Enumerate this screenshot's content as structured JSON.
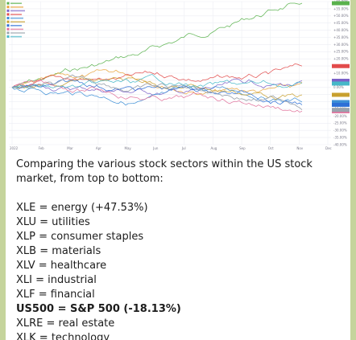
{
  "chart": {
    "x_tick_labels": [
      "2022",
      "Feb",
      "Mar",
      "Apr",
      "May",
      "Jun",
      "Jul",
      "Aug",
      "Sep",
      "Oct",
      "Nov",
      "Dec"
    ],
    "y_tick_labels": [
      "+60.00%",
      "+55.00%",
      "+50.00%",
      "+45.00%",
      "+40.00%",
      "+35.00%",
      "+30.00%",
      "+25.00%",
      "+20.00%",
      "+15.00%",
      "+10.00%",
      "+5.00%",
      "0.00%",
      "-5.00%",
      "-10.00%",
      "-15.00%",
      "-20.00%",
      "-25.00%",
      "-30.00%",
      "-35.00%",
      "-40.00%"
    ],
    "series_colors": [
      "#5ab24d",
      "#e8a33a",
      "#7b61c8",
      "#e24b4b",
      "#3d8fd6",
      "#c8a02f",
      "#2d6fd6",
      "#e0709a",
      "#9aa3ad",
      "#46b8c8"
    ],
    "legend_colors": [
      "#5ab24d",
      "#e8a33a",
      "#7b61c8",
      "#e24b4b",
      "#3d8fd6",
      "#c8a02f",
      "#2d6fd6",
      "#e0709a",
      "#9aa3ad",
      "#46b8c8"
    ]
  },
  "message": {
    "intro": "Comparing the various stock sectors within the US stock market, from top to bottom:",
    "lines": [
      "XLE = energy (+47.53%)",
      "XLU = utilities",
      "XLP = consumer staples",
      "XLB = materials",
      "XLV = healthcare",
      "XLI = industrial",
      "XLF = financial",
      "US500 = S&P 500 (-18.13%)",
      "XLRE = real estate",
      "XLK = technology"
    ]
  }
}
